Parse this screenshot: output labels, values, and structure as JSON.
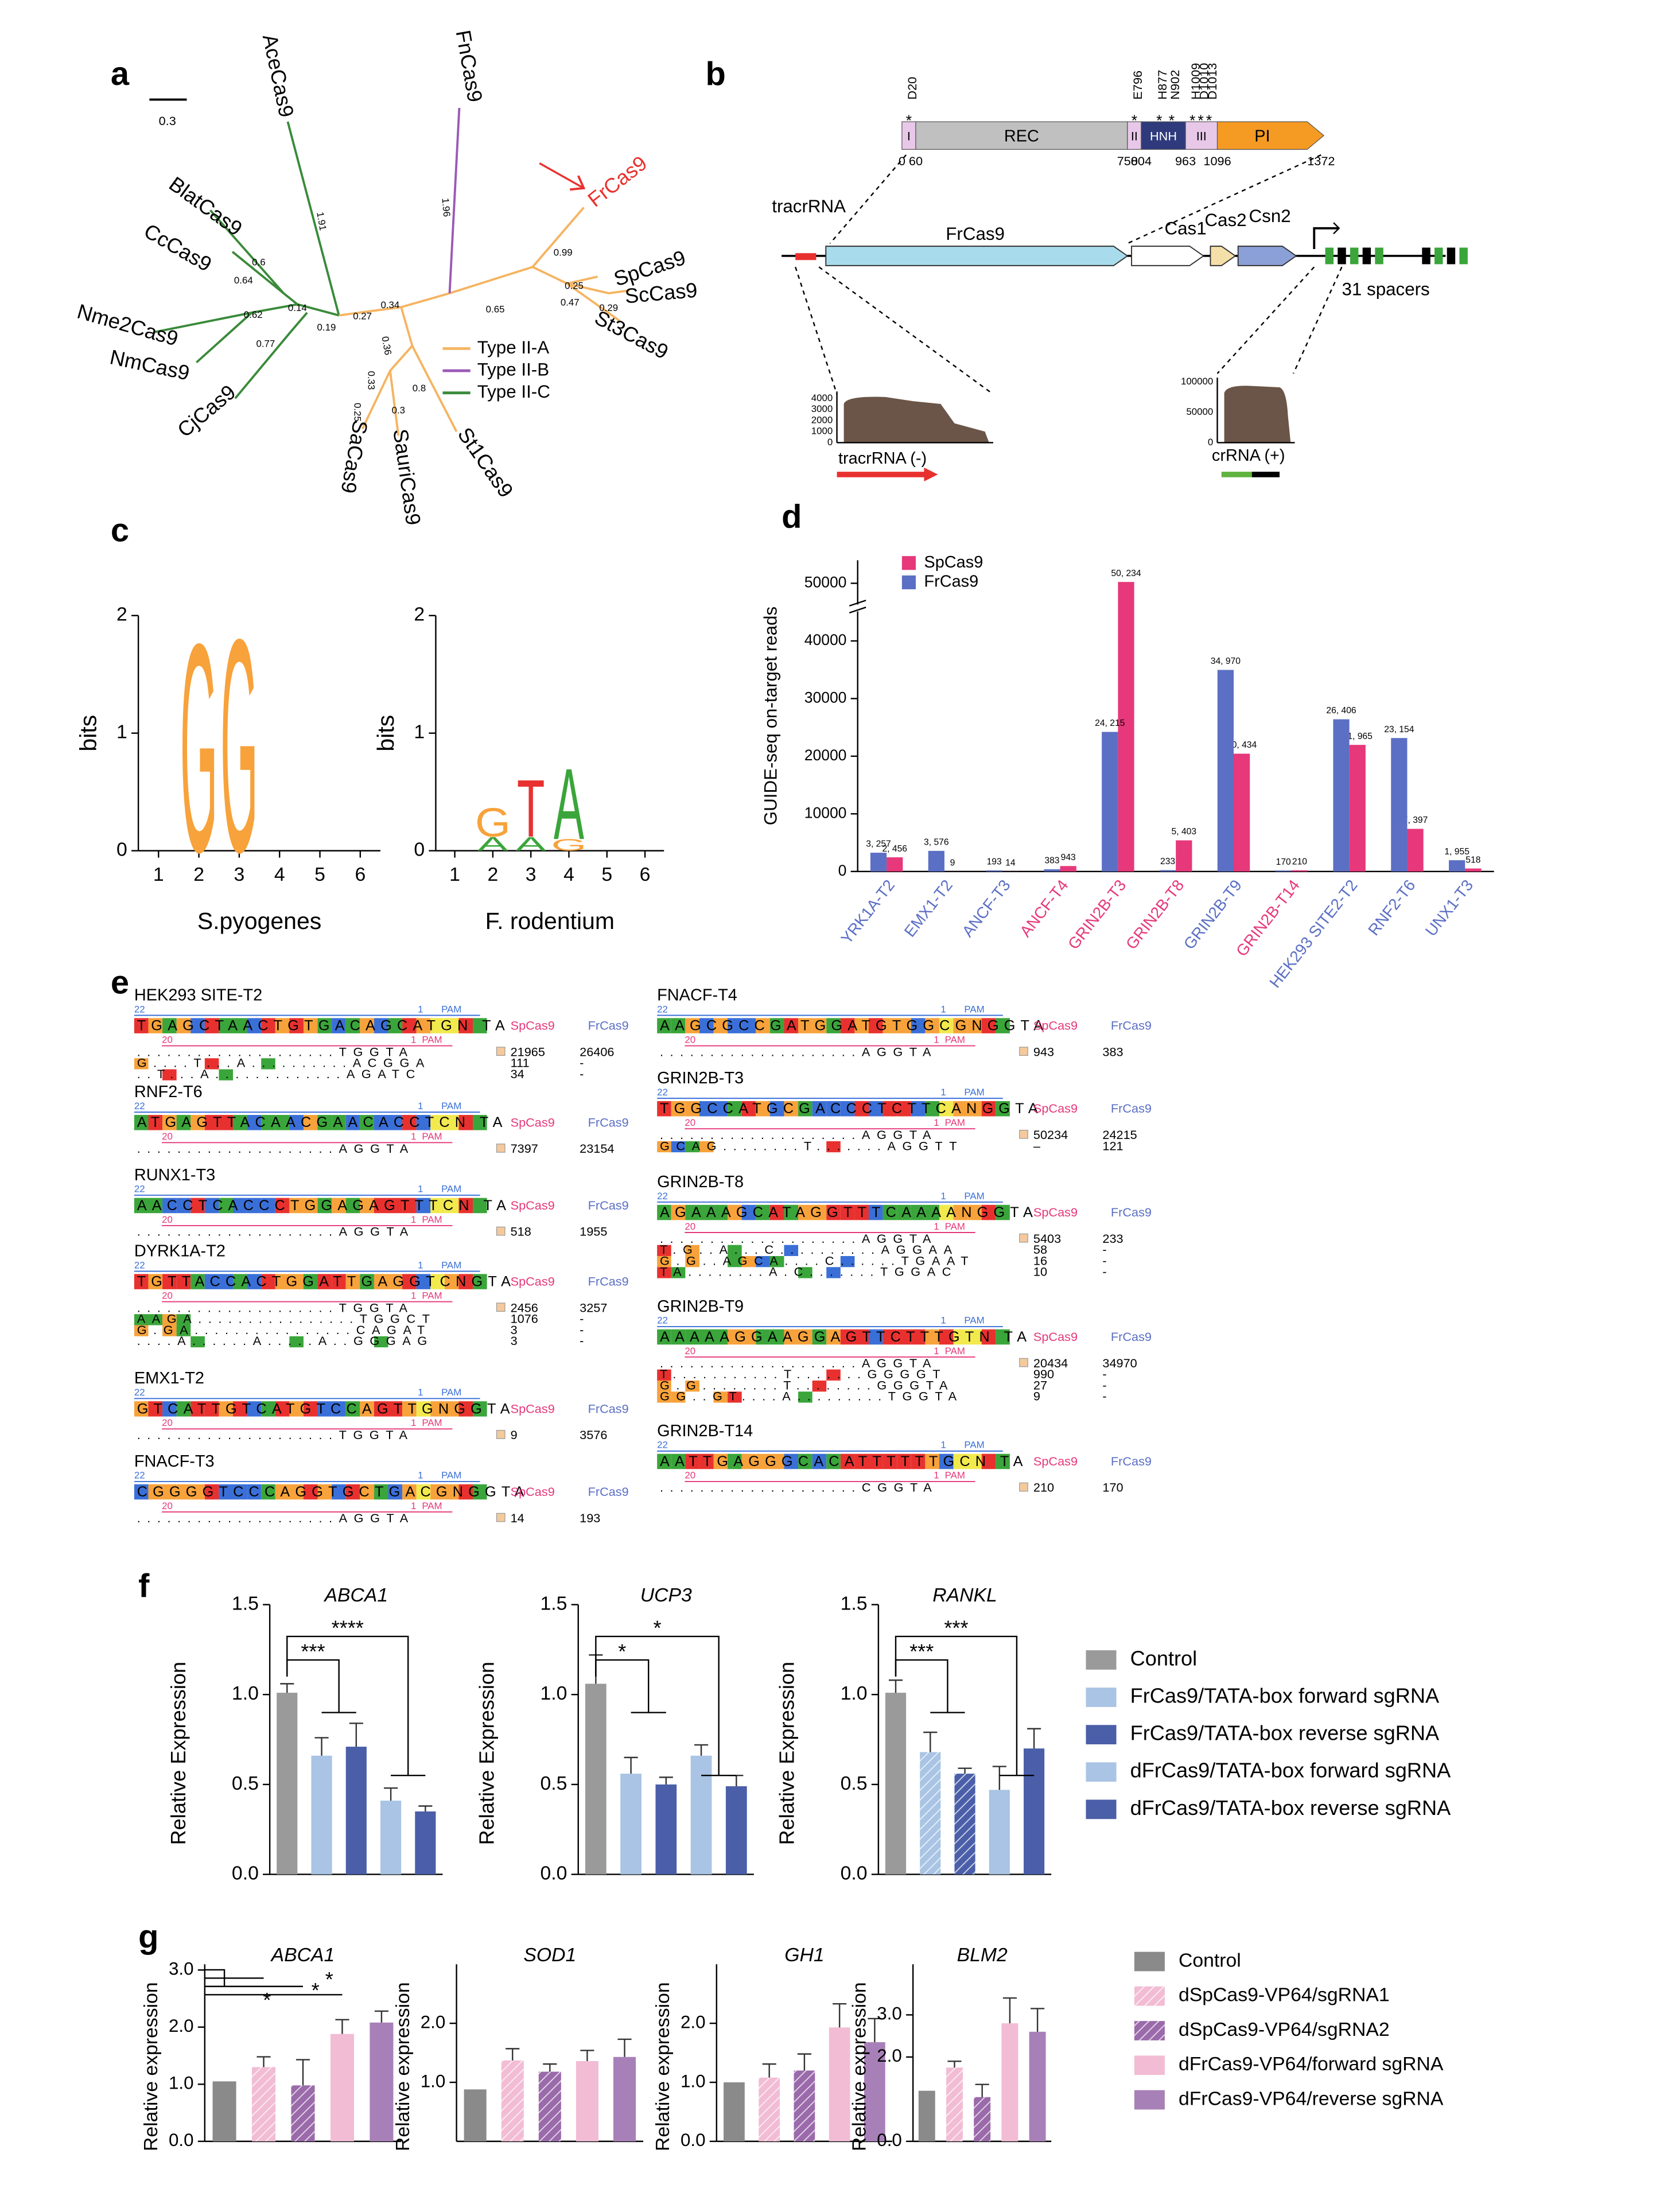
{
  "panel_labels": [
    "a",
    "b",
    "c",
    "d",
    "e",
    "f",
    "g"
  ],
  "tree": {
    "scale_label": "0.3",
    "leaves": [
      "AceCas9",
      "FnCas9",
      "FrCas9",
      "SpCas9",
      "ScCas9",
      "St3Cas9",
      "St1Cas9",
      "SauriCas9",
      "SaCas9",
      "CjCas9",
      "NmCas9",
      "Nme2Cas9",
      "CcCas9",
      "BlatCas9"
    ],
    "branch_labels": [
      "1.91",
      "1.96",
      "0.99",
      "0.25",
      "0.29",
      "0.47",
      "0.65",
      "0.34",
      "0.27",
      "0.19",
      "0.14",
      "0.6",
      "0.64",
      "0.62",
      "0.77",
      "0.36",
      "0.33",
      "0.25",
      "0.3",
      "0.8"
    ],
    "legend": [
      {
        "name": "Type II-A",
        "color": "#f5b461"
      },
      {
        "name": "Type II-B",
        "color": "#9b59b6"
      },
      {
        "name": "Type II-C",
        "color": "#3a8a3a"
      }
    ]
  },
  "domain_map": {
    "residues": [
      "D20",
      "E796",
      "H877",
      "N902",
      "H1009",
      "D1010",
      "D1013"
    ],
    "star": "*",
    "domains": [
      {
        "name": "I",
        "color": "#e8c8e8"
      },
      {
        "name": "REC",
        "color": "#c0c0c0"
      },
      {
        "name": "II",
        "color": "#e8c8e8"
      },
      {
        "name": "HNH",
        "color": "#2e3a7c"
      },
      {
        "name": "III",
        "color": "#e8c8e8"
      },
      {
        "name": "PI",
        "color": "#f59a23"
      }
    ],
    "positions": [
      "0",
      "60",
      "750",
      "804",
      "963",
      "1096",
      "1372"
    ],
    "genes": [
      {
        "name": "tracrRNA",
        "color": "#e8312f"
      },
      {
        "name": "FrCas9",
        "color": "#a8dced"
      },
      {
        "name": "Cas1",
        "color": "#ffffff"
      },
      {
        "name": "Cas2",
        "color": "#f5dfa8"
      },
      {
        "name": "Csn2",
        "color": "#8ca0d8"
      }
    ],
    "spacers": "31 spacers",
    "tracr_ticks": [
      "4000",
      "3000",
      "2000",
      "1000",
      "0"
    ],
    "cr_ticks": [
      "100000",
      "50000",
      "0"
    ],
    "tracr_label": "tracrRNA (-)",
    "cr_label": "crRNA (+)"
  },
  "letter_colors": {
    "G": "#f7a23b",
    "A": "#3aa53a",
    "T": "#e8312f",
    "C": "#3a6fd8",
    "N": "#f2e94e"
  },
  "alignment_labels": {
    "sp": "SpCas9",
    "fr": "FrCas9",
    "pam": "PAM",
    "n22": "22",
    "n20": "20",
    "n1": "1"
  },
  "alignments": [
    {
      "title": "HEK293 SITE-T2",
      "ref": "TGAGCTAACTGTGACAGCATGN TA",
      "rows": [
        [
          "....................TGGTA",
          "21965",
          "26406"
        ],
        [
          "G....T...A..........ACGGA",
          "111",
          "-"
        ],
        [
          "..T...A.............AGATC",
          "34",
          "-"
        ]
      ]
    },
    {
      "title": "RNF2-T6",
      "ref": "ATGAGTTACAACGAACACCTCN TA",
      "rows": [
        [
          "....................AGGTA",
          "7397",
          "23154"
        ]
      ]
    },
    {
      "title": "RUNX1-T3",
      "ref": "AACCTCACCCTGGAGAGTTTCN TA",
      "rows": [
        [
          "....................AGGTA",
          "518",
          "1955"
        ]
      ]
    },
    {
      "title": "DYRK1A-T2",
      "ref": "TGTTACCACTGGATTGAGGTCNGTA",
      "rows": [
        [
          "....................TGGTA",
          "2456",
          "3257"
        ],
        [
          "AAGA................TGGCT",
          "1076",
          "-"
        ],
        [
          "G.GA................CAGAT",
          "3",
          "-"
        ],
        [
          "....A......A.....A..GGGAG",
          "3",
          "-"
        ]
      ]
    },
    {
      "title": "EMX1-T2",
      "ref": "GTCATTGTCATGTCCAGTTGNGGTA",
      "rows": [
        [
          "....................TGGTA",
          "9",
          "3576"
        ]
      ]
    },
    {
      "title": "FNACF-T3",
      "ref": "CGGGGTCCCAGGTGCTGACGNGGTA",
      "rows": [
        [
          "....................AGGTA",
          "14",
          "193"
        ]
      ]
    },
    {
      "title": "FNACF-T4",
      "ref": "AAGCGCCGATGGATGTGGCGNGGTA",
      "rows": [
        [
          "....................AGGTA",
          "943",
          "383"
        ]
      ]
    },
    {
      "title": "GRIN2B-T3",
      "ref": "TGGCCATGCGACCCTCTTCANGGTA",
      "rows": [
        [
          "....................AGGTA",
          "50234",
          "24215"
        ],
        [
          "GCAG........T.......AGGTT",
          "–",
          "121"
        ]
      ]
    },
    {
      "title": "GRIN2B-T8",
      "ref": "AGAAAGCATAGGTTTCAAAANGGTA",
      "rows": [
        [
          "....................AGGTA",
          "5403",
          "233"
        ],
        [
          "T.G..A...C..........AGGAA",
          "58",
          "-"
        ],
        [
          "G.G..AGCA....C......TGAAT",
          "16",
          "-"
        ],
        [
          "TA........A.C.......TGGAC",
          "10",
          "-"
        ]
      ]
    },
    {
      "title": "GRIN2B-T9",
      "ref": "AAAAAGGAAGGAGTTCTTTGTN TA",
      "rows": [
        [
          "....................AGGTA",
          "20434",
          "34970"
        ],
        [
          "T...........T.......GGGGT",
          "990",
          "-"
        ],
        [
          "G.G........T........GGGTA",
          "27",
          "-"
        ],
        [
          "GG..GT....A.........TGGTA",
          "9",
          "-"
        ]
      ]
    },
    {
      "title": "GRIN2B-T14",
      "ref": "AATTGAGGGCACATTTTTTGCN TA",
      "rows": [
        [
          "....................CGGTA",
          "210",
          "170"
        ]
      ]
    }
  ],
  "legend_f": [
    {
      "name": "Control",
      "color": "#9a9a9a",
      "hatched": false
    },
    {
      "name": "FrCas9/TATA-box forward sgRNA",
      "color": "#a9c4e4",
      "hatched": false
    },
    {
      "name": "FrCas9/TATA-box reverse sgRNA",
      "color": "#4a5fa8",
      "hatched": false
    },
    {
      "name": "dFrCas9/TATA-box forward sgRNA",
      "color": "#a9c4e4",
      "hatched": false
    },
    {
      "name": "dFrCas9/TATA-box reverse sgRNA",
      "color": "#4a5fa8",
      "hatched": false
    }
  ],
  "legend_g": [
    {
      "name": "Control",
      "color": "#8a8a8a",
      "hatched": false
    },
    {
      "name": "dSpCas9-VP64/sgRNA1",
      "color": "#f2bcd4",
      "hatched": true
    },
    {
      "name": "dSpCas9-VP64/sgRNA2",
      "color": "#9a6aaa",
      "hatched": true
    },
    {
      "name": "dFrCas9-VP64/forward sgRNA",
      "color": "#f2bcd4",
      "hatched": false
    },
    {
      "name": "dFrCas9-VP64/reverse sgRNA",
      "color": "#a880b8",
      "hatched": false
    }
  ],
  "chart_data": [
    {
      "type": "logo",
      "title": "S.pyogenes",
      "ylabel": "bits",
      "ylim": [
        0,
        2
      ],
      "yticks": [
        0,
        1,
        2
      ],
      "xticks": [
        1,
        2,
        3,
        4,
        5,
        6
      ],
      "stacks": [
        [],
        [
          {
            "letter": "G",
            "bits": 1.82
          }
        ],
        [
          {
            "letter": "G",
            "bits": 1.86
          }
        ],
        [],
        [],
        []
      ]
    },
    {
      "type": "logo",
      "title": "F. rodentium",
      "ylabel": "bits",
      "ylim": [
        0,
        2
      ],
      "yticks": [
        0,
        1,
        2
      ],
      "xticks": [
        1,
        2,
        3,
        4,
        5,
        6
      ],
      "stacks": [
        [],
        [
          {
            "letter": "A",
            "bits": 0.12
          },
          {
            "letter": "G",
            "bits": 0.25
          }
        ],
        [
          {
            "letter": "A",
            "bits": 0.12
          },
          {
            "letter": "T",
            "bits": 0.5
          }
        ],
        [
          {
            "letter": "G",
            "bits": 0.1
          },
          {
            "letter": "A",
            "bits": 0.62
          }
        ],
        [],
        []
      ]
    },
    {
      "type": "grouped-bar",
      "ylabel": "GUIDE-seq on-target reads",
      "ylim": [
        0,
        54000
      ],
      "yticks": [
        0,
        10000,
        20000,
        30000,
        40000,
        50000
      ],
      "categories": [
        "YRK1A-T2",
        "EMX1-T2",
        "ANCF-T3",
        "ANCF-T4",
        "GRIN2B-T3",
        "GRIN2B-T8",
        "GRIN2B-T9",
        "GRIN2B-T14",
        "HEK293 SITE2-T2",
        "RNF2-T6",
        "UNX1-T3"
      ],
      "category_colors": [
        "#5b6fc4",
        "#5b6fc4",
        "#5b6fc4",
        "#e6387a",
        "#e6387a",
        "#e6387a",
        "#5b6fc4",
        "#e6387a",
        "#5b6fc4",
        "#5b6fc4",
        "#5b6fc4"
      ],
      "series": [
        {
          "name": "SpCas9",
          "color": "#e6387a",
          "values": [
            2456,
            9,
            14,
            943,
            50234,
            5403,
            20434,
            210,
            21965,
            7397,
            518
          ],
          "value_labels": [
            "2, 456",
            "9",
            "14",
            "943",
            "50, 234",
            "5, 403",
            "20, 434",
            "210",
            "21, 965",
            "7, 397",
            "518"
          ]
        },
        {
          "name": "FrCas9",
          "color": "#5b6fc4",
          "values": [
            3257,
            3576,
            193,
            383,
            24215,
            233,
            34970,
            170,
            26406,
            23154,
            1955
          ],
          "value_labels": [
            "3, 257",
            "3, 576",
            "193",
            "383",
            "24, 215",
            "233",
            "34, 970",
            "170",
            "26, 406",
            "23, 154",
            "1, 955"
          ]
        }
      ]
    },
    {
      "type": "bar",
      "title": "ABCA1",
      "ylabel": "Relative Expression",
      "ylim": [
        0,
        1.5
      ],
      "yticks": [
        {
          "value": 0,
          "label": "0.0"
        },
        0.5,
        {
          "value": 1,
          "label": "1.0"
        },
        1.5
      ],
      "values": [
        1.01,
        0.66,
        0.71,
        0.41,
        0.35
      ],
      "errors": [
        0.05,
        0.1,
        0.13,
        0.07,
        0.03
      ],
      "hatched": [
        false,
        false,
        false,
        false,
        false
      ],
      "annotations": [
        "***",
        "****"
      ]
    },
    {
      "type": "bar",
      "title": "UCP3",
      "ylabel": "Relative Expression",
      "ylim": [
        0,
        1.5
      ],
      "yticks": [
        {
          "value": 0,
          "label": "0.0"
        },
        0.5,
        {
          "value": 1,
          "label": "1.0"
        },
        1.5
      ],
      "values": [
        1.06,
        0.56,
        0.5,
        0.66,
        0.49
      ],
      "errors": [
        0.16,
        0.09,
        0.04,
        0.06,
        0.06
      ],
      "hatched": [
        false,
        false,
        false,
        false,
        false
      ],
      "annotations": [
        "*",
        "*"
      ]
    },
    {
      "type": "bar",
      "title": "RANKL",
      "ylabel": "Relative Expression",
      "ylim": [
        0,
        1.5
      ],
      "yticks": [
        {
          "value": 0,
          "label": "0.0"
        },
        0.5,
        {
          "value": 1,
          "label": "1.0"
        },
        1.5
      ],
      "values": [
        1.01,
        0.68,
        0.56,
        0.47,
        0.7
      ],
      "errors": [
        0.07,
        0.11,
        0.03,
        0.13,
        0.11
      ],
      "hatched": [
        false,
        true,
        true,
        false,
        false
      ],
      "annotations": [
        "***",
        "***"
      ]
    },
    {
      "type": "bar",
      "title": "ABCA1",
      "ylabel": "Relative expression",
      "ylim": [
        0,
        3.1
      ],
      "yticks": [
        {
          "value": 0,
          "label": "0.0"
        },
        {
          "value": 1,
          "label": "1.0"
        },
        {
          "value": 2,
          "label": "2.0"
        },
        {
          "value": 3,
          "label": "3.0"
        }
      ],
      "values": [
        1.05,
        1.3,
        0.98,
        1.88,
        2.08
      ],
      "errors": [
        0,
        0.18,
        0.45,
        0.25,
        0.2
      ],
      "hatched": [
        false,
        true,
        true,
        false,
        false
      ],
      "annotations": [
        "*",
        "*",
        "*"
      ]
    },
    {
      "type": "bar",
      "title": "SOD1",
      "ylabel": "Relative expression",
      "ylim": [
        0,
        3
      ],
      "yticks": [
        {
          "value": 1,
          "label": "1.0"
        },
        {
          "value": 2,
          "label": "2.0"
        }
      ],
      "values": [
        0.88,
        1.37,
        1.18,
        1.36,
        1.43
      ],
      "errors": [
        0,
        0.2,
        0.13,
        0.18,
        0.3
      ],
      "hatched": [
        false,
        true,
        true,
        false,
        false
      ]
    },
    {
      "type": "bar",
      "title": "GH1",
      "ylabel": "Relative expression",
      "ylim": [
        0,
        3
      ],
      "yticks": [
        {
          "value": 0,
          "label": "0.0"
        },
        {
          "value": 1,
          "label": "1.0"
        },
        {
          "value": 2,
          "label": "2.0"
        }
      ],
      "values": [
        1,
        1.08,
        1.2,
        1.93,
        1.68
      ],
      "errors": [
        0,
        0.23,
        0.28,
        0.4,
        0.4
      ],
      "hatched": [
        false,
        true,
        true,
        false,
        false
      ]
    },
    {
      "type": "bar",
      "title": "BLM2",
      "ylabel": "Relative expression",
      "ylim": [
        0,
        4.2
      ],
      "yticks": [
        {
          "value": 0,
          "label": "0.0"
        },
        {
          "value": 2,
          "label": "2.0"
        },
        {
          "value": 3,
          "label": "3.0"
        }
      ],
      "values": [
        1.2,
        1.75,
        1.05,
        2.8,
        2.6
      ],
      "errors": [
        0,
        0.15,
        0.3,
        0.6,
        0.55
      ],
      "hatched": [
        false,
        true,
        true,
        false,
        false
      ]
    }
  ]
}
